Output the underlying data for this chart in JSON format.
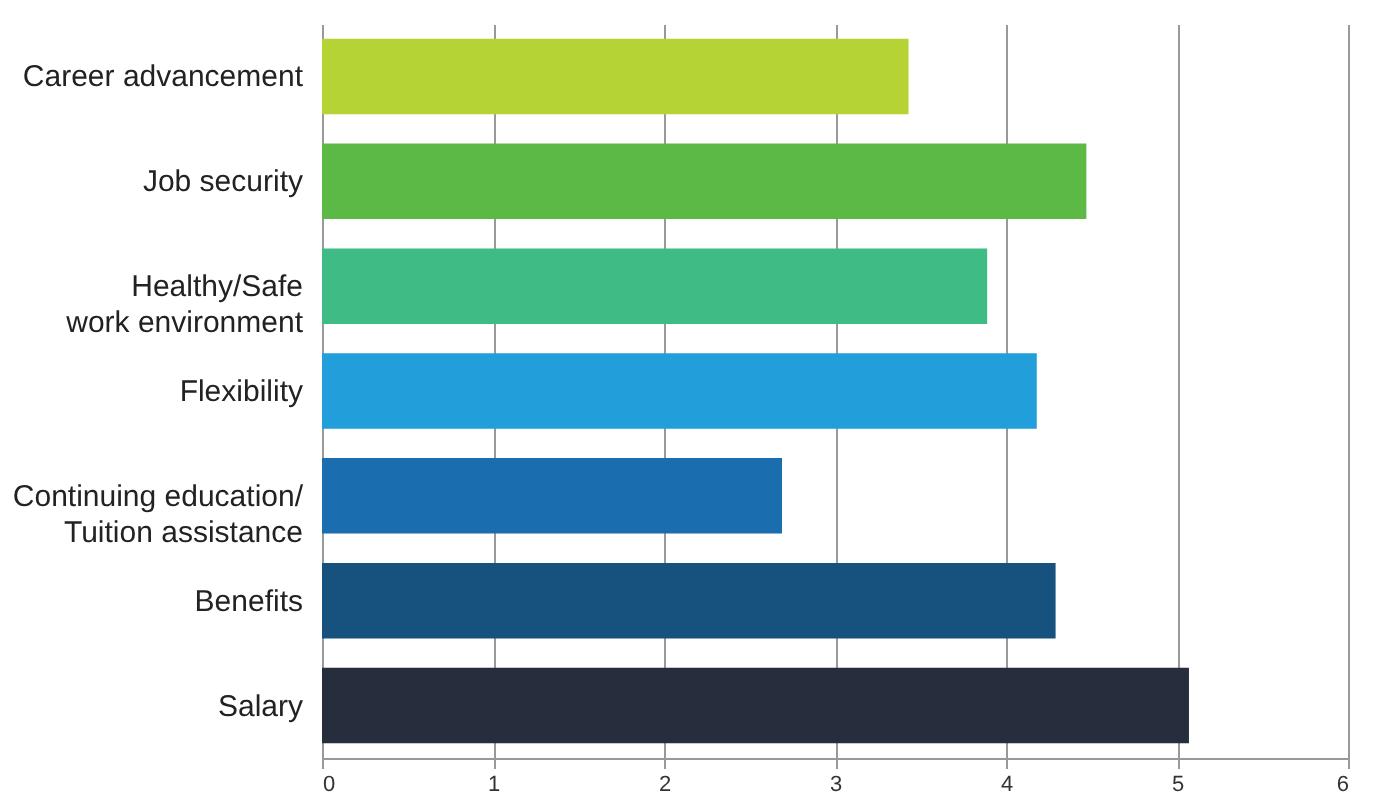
{
  "chart_data": {
    "type": "bar",
    "orientation": "horizontal",
    "categories": [
      "Career advancement",
      "Job security",
      "Healthy/Safe\nwork environment",
      "Flexibility",
      "Continuing education/\nTuition assistance",
      "Benefits",
      "Salary"
    ],
    "values": [
      3.43,
      4.47,
      3.89,
      4.18,
      2.69,
      4.29,
      5.07
    ],
    "colors": [
      "#b5d334",
      "#5cb946",
      "#3fbb85",
      "#229fdb",
      "#1a6daf",
      "#17517e",
      "#262e3e"
    ],
    "xlim": [
      0,
      6
    ],
    "xticks": [
      0,
      1,
      2,
      3,
      4,
      5,
      6
    ],
    "grid": "x"
  }
}
